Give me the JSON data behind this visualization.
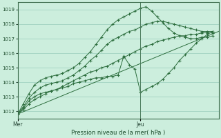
{
  "xlabel": "Pression niveau de la mer( hPa )",
  "bg_color": "#cceedd",
  "grid_color": "#99ccbb",
  "line_color": "#2d6e3e",
  "marker_color": "#2d6e3e",
  "ylim": [
    1011.5,
    1019.5
  ],
  "xlim": [
    0,
    72
  ],
  "xtick_mer": 0,
  "xtick_jeu": 44,
  "xticks_labels": [
    "Mer",
    "Jeu"
  ],
  "yticks": [
    1012,
    1013,
    1014,
    1015,
    1016,
    1017,
    1018,
    1019
  ],
  "vline_x": 44,
  "series": [
    {
      "x": [
        0,
        2,
        4,
        6,
        8,
        10,
        12,
        14,
        16,
        18,
        20,
        22,
        24,
        26,
        28,
        30,
        32,
        34,
        36,
        38,
        40,
        42,
        44,
        46,
        48,
        50,
        52,
        54,
        56,
        58,
        60,
        62,
        64,
        66,
        68,
        70
      ],
      "y": [
        1011.8,
        1012.5,
        1013.2,
        1013.8,
        1014.1,
        1014.3,
        1014.4,
        1014.5,
        1014.6,
        1014.8,
        1015.0,
        1015.3,
        1015.7,
        1016.1,
        1016.6,
        1017.1,
        1017.6,
        1018.0,
        1018.3,
        1018.5,
        1018.7,
        1018.9,
        1019.1,
        1019.2,
        1018.9,
        1018.5,
        1018.1,
        1017.7,
        1017.4,
        1017.2,
        1017.1,
        1017.0,
        1017.0,
        1017.1,
        1017.1,
        1017.2
      ]
    },
    {
      "x": [
        0,
        2,
        4,
        6,
        8,
        10,
        12,
        14,
        16,
        18,
        20,
        22,
        24,
        26,
        28,
        30,
        32,
        34,
        36,
        38,
        40,
        42,
        44,
        46,
        48,
        50,
        52,
        54,
        56,
        58,
        60,
        62,
        64,
        66,
        68,
        70
      ],
      "y": [
        1011.8,
        1012.3,
        1012.9,
        1013.3,
        1013.6,
        1013.8,
        1013.9,
        1014.0,
        1014.1,
        1014.3,
        1014.5,
        1014.8,
        1015.1,
        1015.5,
        1015.8,
        1016.2,
        1016.6,
        1016.9,
        1017.1,
        1017.3,
        1017.5,
        1017.6,
        1017.8,
        1018.0,
        1018.1,
        1018.2,
        1018.2,
        1018.1,
        1018.0,
        1017.9,
        1017.8,
        1017.7,
        1017.6,
        1017.5,
        1017.5,
        1017.5
      ]
    },
    {
      "x": [
        0,
        2,
        4,
        6,
        8,
        10,
        12,
        14,
        16,
        18,
        20,
        22,
        24,
        26,
        28,
        30,
        32,
        34,
        36,
        38,
        40,
        42,
        44,
        46,
        48,
        50,
        52,
        54,
        56,
        58,
        60,
        62,
        64,
        66,
        68,
        70
      ],
      "y": [
        1011.8,
        1012.2,
        1012.7,
        1013.0,
        1013.2,
        1013.3,
        1013.4,
        1013.5,
        1013.6,
        1013.7,
        1013.9,
        1014.0,
        1014.1,
        1014.2,
        1014.3,
        1014.3,
        1014.4,
        1014.4,
        1014.5,
        1015.8,
        1015.2,
        1014.9,
        1013.3,
        1013.5,
        1013.7,
        1013.9,
        1014.2,
        1014.6,
        1015.0,
        1015.5,
        1015.9,
        1016.3,
        1016.7,
        1017.0,
        1017.3,
        1017.5
      ]
    },
    {
      "x": [
        0,
        72
      ],
      "y": [
        1011.8,
        1017.5
      ]
    },
    {
      "x": [
        0,
        2,
        4,
        6,
        8,
        10,
        12,
        14,
        16,
        18,
        20,
        22,
        24,
        26,
        28,
        30,
        32,
        34,
        36,
        38,
        40,
        42,
        44,
        46,
        48,
        50,
        52,
        54,
        56,
        58,
        60,
        62,
        64,
        66,
        68,
        70
      ],
      "y": [
        1011.8,
        1012.1,
        1012.5,
        1012.8,
        1013.0,
        1013.2,
        1013.4,
        1013.5,
        1013.7,
        1013.9,
        1014.1,
        1014.3,
        1014.5,
        1014.7,
        1014.8,
        1015.0,
        1015.1,
        1015.3,
        1015.5,
        1015.7,
        1015.9,
        1016.1,
        1016.3,
        1016.5,
        1016.6,
        1016.8,
        1016.9,
        1017.0,
        1017.1,
        1017.2,
        1017.2,
        1017.3,
        1017.3,
        1017.4,
        1017.4,
        1017.4
      ]
    }
  ]
}
